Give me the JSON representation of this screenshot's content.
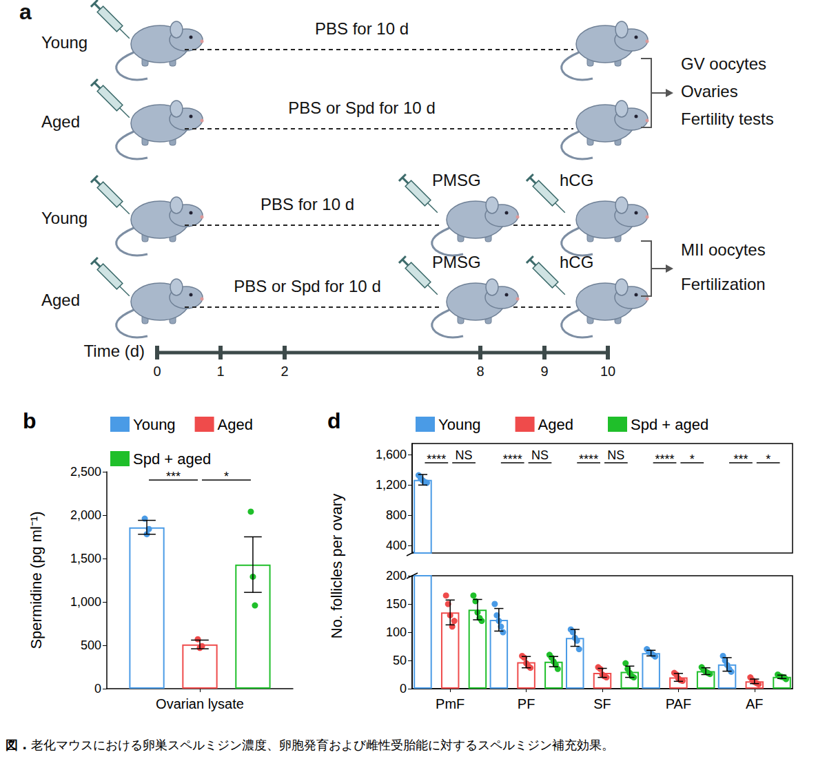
{
  "diagram": {
    "label": "a",
    "protocols": [
      {
        "rows": [
          {
            "group": "Young",
            "treatment": "PBS for 10 d",
            "injections": []
          },
          {
            "group": "Aged",
            "treatment": "PBS or Spd for 10 d",
            "injections": []
          }
        ],
        "outcomes": [
          "GV oocytes",
          "Ovaries",
          "Fertility tests"
        ]
      },
      {
        "rows": [
          {
            "group": "Young",
            "treatment": "PBS for 10 d",
            "injections": [
              "PMSG",
              "hCG"
            ]
          },
          {
            "group": "Aged",
            "treatment": "PBS or Spd for 10 d",
            "injections": [
              "PMSG",
              "hCG"
            ]
          }
        ],
        "outcomes": [
          "MII oocytes",
          "Fertilization"
        ]
      }
    ],
    "timeline": {
      "label": "Time (d)",
      "ticks": [
        0,
        1,
        2,
        8,
        9,
        10
      ]
    }
  },
  "chart_data": [
    {
      "type": "bar",
      "title": "b",
      "categories": [
        "Ovarian lysate"
      ],
      "y_label": "Spermidine (pg ml⁻¹)",
      "ylim": [
        0,
        2500
      ],
      "yticks": [
        0,
        500,
        {
          "value": 1000,
          "label": "1,000"
        },
        {
          "value": 1500,
          "label": "1,500"
        },
        {
          "value": 2000,
          "label": "2,000"
        },
        {
          "value": 2500,
          "label": "2,500"
        }
      ],
      "legend": "top",
      "series": [
        {
          "name": "Young",
          "color": "#4a9be6",
          "values": [
            1860
          ],
          "errors": [
            80
          ],
          "points": [
            [
              1960,
              1780,
              1840
            ]
          ]
        },
        {
          "name": "Aged",
          "color": "#ef4b4b",
          "values": [
            510
          ],
          "errors": [
            50
          ],
          "points": [
            [
              570,
              470,
              490
            ]
          ]
        },
        {
          "name": "Spd + aged",
          "color": "#1fbf2a",
          "values": [
            1430
          ],
          "errors": [
            320
          ],
          "points": [
            [
              2040,
              1290,
              960
            ]
          ]
        }
      ],
      "annotations": [
        {
          "category": "Ovarian lysate",
          "from": "Young",
          "to": "Aged",
          "text": "***"
        },
        {
          "category": "Ovarian lysate",
          "from": "Aged",
          "to": "Spd + aged",
          "text": "*"
        }
      ]
    },
    {
      "type": "bar",
      "title": "d",
      "categories": [
        "PmF",
        "PF",
        "SF",
        "PAF",
        "AF"
      ],
      "y_label": "No. follicles per ovary",
      "ylim": [
        0,
        1750
      ],
      "y_break": [
        200,
        300
      ],
      "yticks": [
        0,
        50,
        100,
        150,
        200,
        400,
        800,
        {
          "value": 1200,
          "label": "1,200"
        },
        {
          "value": 1600,
          "label": "1,600"
        }
      ],
      "legend": "top",
      "series": [
        {
          "name": "Young",
          "color": "#4a9be6",
          "values": [
            1270,
            122,
            90,
            63,
            43
          ],
          "errors": [
            70,
            20,
            15,
            5,
            12
          ],
          "points": [
            [
              1330,
              1290,
              1260,
              1240,
              1230
            ],
            [
              150,
              130,
              120,
              110,
              100
            ],
            [
              105,
              100,
              90,
              85,
              70
            ],
            [
              70,
              65,
              63,
              60,
              57
            ],
            [
              58,
              50,
              42,
              35,
              30
            ]
          ]
        },
        {
          "name": "Aged",
          "color": "#ef4b4b",
          "values": [
            135,
            47,
            28,
            20,
            13
          ],
          "errors": [
            22,
            10,
            8,
            7,
            4
          ],
          "points": [
            [
              165,
              150,
              130,
              110,
              120
            ],
            [
              58,
              55,
              45,
              40,
              37
            ],
            [
              38,
              35,
              25,
              22,
              20
            ],
            [
              28,
              25,
              18,
              15,
              14
            ],
            [
              20,
              15,
              12,
              10,
              8
            ]
          ]
        },
        {
          "name": "Spd + aged",
          "color": "#1fbf2a",
          "values": [
            140,
            48,
            30,
            31,
            21
          ],
          "errors": [
            18,
            9,
            10,
            6,
            3
          ],
          "points": [
            [
              165,
              155,
              135,
              125,
              120
            ],
            [
              60,
              55,
              48,
              42,
              35
            ],
            [
              45,
              35,
              28,
              22,
              20
            ],
            [
              38,
              33,
              30,
              28,
              26
            ],
            [
              25,
              22,
              21,
              20,
              17
            ]
          ]
        }
      ],
      "annotations": [
        {
          "category": "PmF",
          "from": "Young",
          "to": "Aged",
          "text": "****"
        },
        {
          "category": "PmF",
          "from": "Aged",
          "to": "Spd + aged",
          "text": "NS"
        },
        {
          "category": "PF",
          "from": "Young",
          "to": "Aged",
          "text": "****"
        },
        {
          "category": "PF",
          "from": "Aged",
          "to": "Spd + aged",
          "text": "NS"
        },
        {
          "category": "SF",
          "from": "Young",
          "to": "Aged",
          "text": "****"
        },
        {
          "category": "SF",
          "from": "Aged",
          "to": "Spd + aged",
          "text": "NS"
        },
        {
          "category": "PAF",
          "from": "Young",
          "to": "Aged",
          "text": "****"
        },
        {
          "category": "PAF",
          "from": "Aged",
          "to": "Spd + aged",
          "text": "*"
        },
        {
          "category": "AF",
          "from": "Young",
          "to": "Aged",
          "text": "***"
        },
        {
          "category": "AF",
          "from": "Aged",
          "to": "Spd + aged",
          "text": "*"
        }
      ]
    }
  ],
  "caption": {
    "label": "図 .",
    "text": "老化マウスにおける卵巣スペルミジン濃度、卵胞発育および雌性受胎能に対するスペルミジン補充効果。"
  }
}
